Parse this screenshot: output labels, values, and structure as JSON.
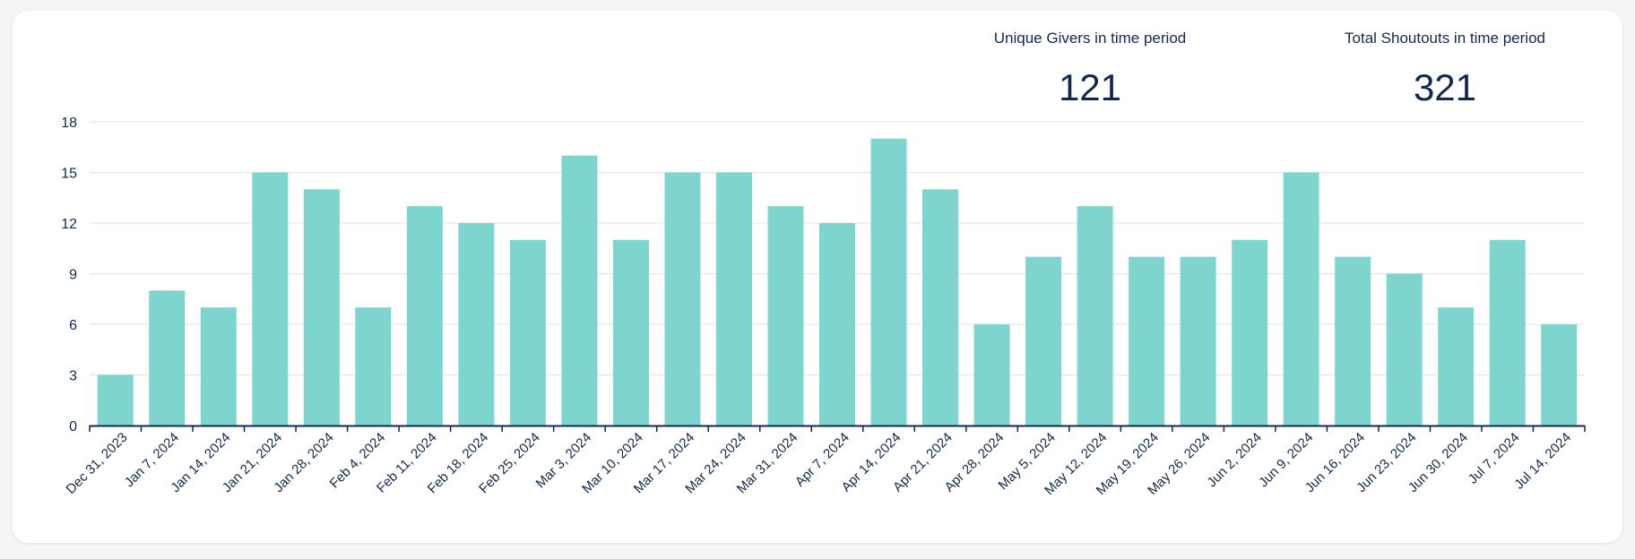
{
  "stats": {
    "unique_givers": {
      "label": "Unique Givers in time period",
      "value": "121"
    },
    "total_shoutouts": {
      "label": "Total Shoutouts in time period",
      "value": "321"
    }
  },
  "colors": {
    "bar": "#7dd5ce",
    "text": "#11294d",
    "grid": "#dfe3e8",
    "axis": "#11294d"
  },
  "chart_data": {
    "type": "bar",
    "categories": [
      "Dec 31, 2023",
      "Jan 7, 2024",
      "Jan 14, 2024",
      "Jan 21, 2024",
      "Jan 28, 2024",
      "Feb 4, 2024",
      "Feb 11, 2024",
      "Feb 18, 2024",
      "Feb 25, 2024",
      "Mar 3, 2024",
      "Mar 10, 2024",
      "Mar 17, 2024",
      "Mar 24, 2024",
      "Mar 31, 2024",
      "Apr 7, 2024",
      "Apr 14, 2024",
      "Apr 21, 2024",
      "Apr 28, 2024",
      "May 5, 2024",
      "May 12, 2024",
      "May 19, 2024",
      "May 26, 2024",
      "Jun 2, 2024",
      "Jun 9, 2024",
      "Jun 16, 2024",
      "Jun 23, 2024",
      "Jun 30, 2024",
      "Jul 7, 2024",
      "Jul 14, 2024"
    ],
    "values": [
      3,
      8,
      7,
      15,
      14,
      7,
      13,
      12,
      11,
      16,
      11,
      15,
      15,
      13,
      12,
      17,
      14,
      6,
      10,
      13,
      10,
      10,
      11,
      15,
      10,
      9,
      7,
      11,
      6
    ],
    "title": "",
    "xlabel": "",
    "ylabel": "",
    "ylim": [
      0,
      18
    ],
    "yticks": [
      0,
      3,
      6,
      9,
      12,
      15,
      18
    ],
    "grid": true,
    "legend": "none"
  }
}
